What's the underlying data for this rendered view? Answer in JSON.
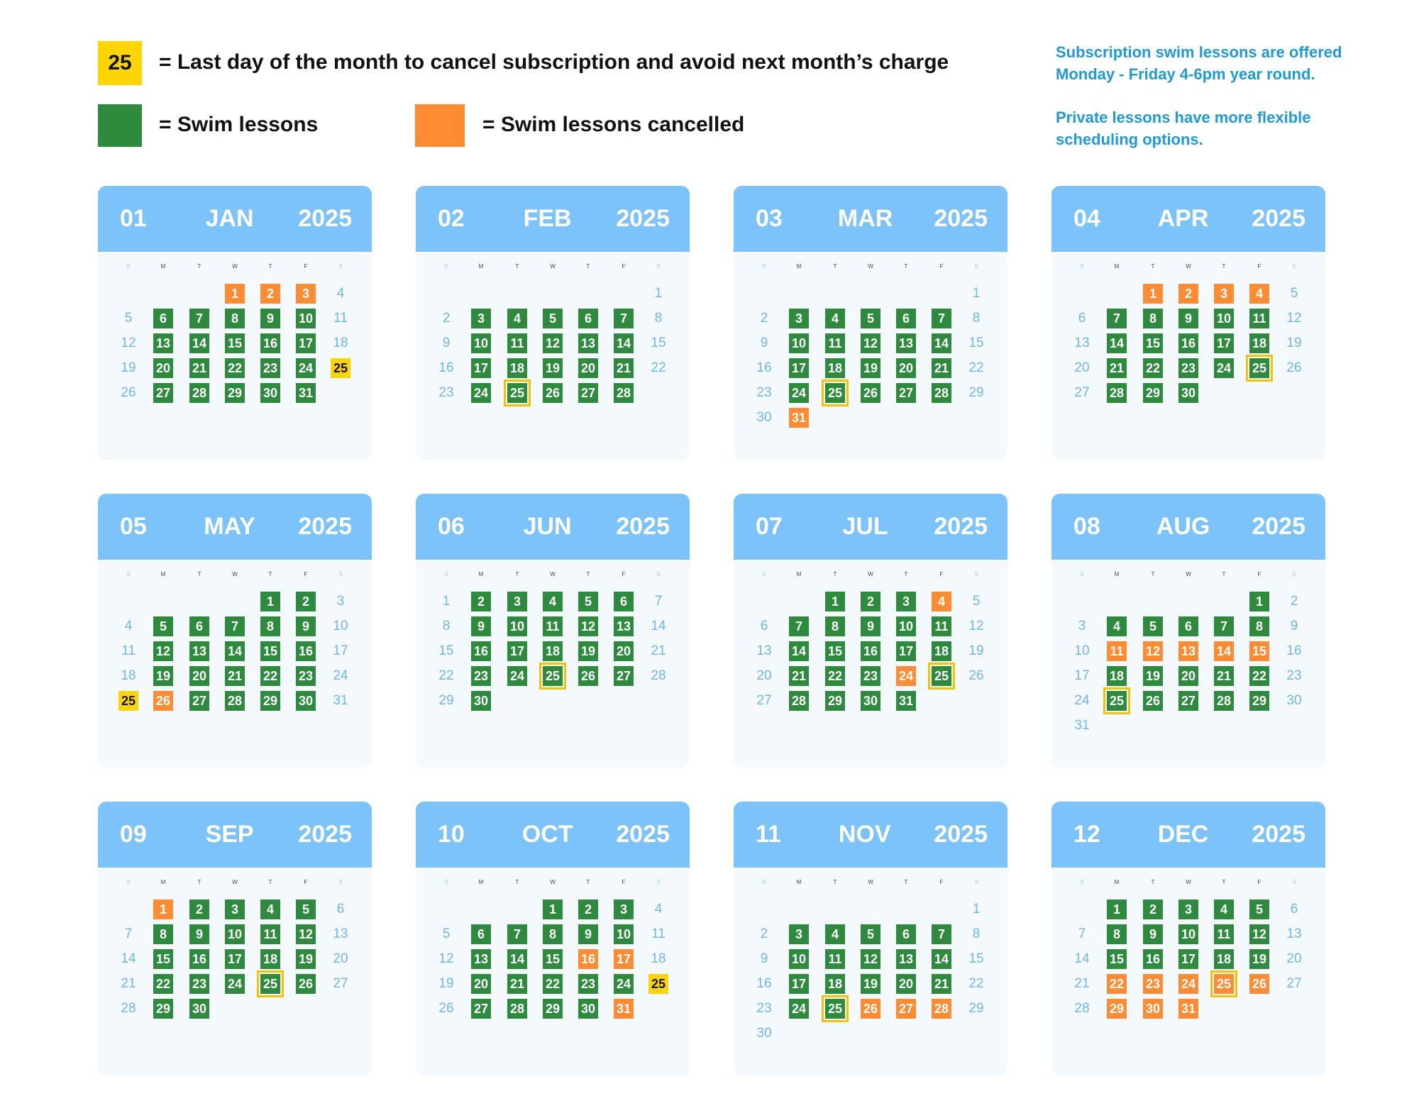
{
  "legend": {
    "deadline_swatch_label": "25",
    "deadline_text": "= Last day of the month to cancel subscription and avoid next month’s charge",
    "lessons_text": "= Swim lessons",
    "cancelled_text": "= Swim lessons cancelled"
  },
  "info": {
    "line1": "Subscription swim lessons are offered  Monday - Friday 4-6pm year round.",
    "line2": "Private lessons have more flexible scheduling options."
  },
  "colors": {
    "lesson": "#2e8b3e",
    "cancelled": "#ff8c33",
    "deadline": "#ffd500",
    "header": "#7cc2fb",
    "info_text": "#1e9ad6"
  },
  "weekday_labels": [
    "S",
    "M",
    "T",
    "W",
    "T",
    "F",
    "S"
  ],
  "months": [
    {
      "num": "01",
      "name": "JAN",
      "year": "2025",
      "start_dow": 3,
      "days": 31,
      "cancelled": [
        1,
        2,
        3
      ],
      "deadline_highlight": true
    },
    {
      "num": "02",
      "name": "FEB",
      "year": "2025",
      "start_dow": 6,
      "days": 28,
      "cancelled": [],
      "deadline_highlight": false
    },
    {
      "num": "03",
      "name": "MAR",
      "year": "2025",
      "start_dow": 6,
      "days": 31,
      "cancelled": [
        31
      ],
      "deadline_highlight": false
    },
    {
      "num": "04",
      "name": "APR",
      "year": "2025",
      "start_dow": 2,
      "days": 30,
      "cancelled": [
        1,
        2,
        3,
        4
      ],
      "deadline_highlight": false
    },
    {
      "num": "05",
      "name": "MAY",
      "year": "2025",
      "start_dow": 4,
      "days": 31,
      "cancelled": [
        26
      ],
      "deadline_highlight": true
    },
    {
      "num": "06",
      "name": "JUN",
      "year": "2025",
      "start_dow": 0,
      "days": 30,
      "cancelled": [],
      "deadline_highlight": false
    },
    {
      "num": "07",
      "name": "JUL",
      "year": "2025",
      "start_dow": 2,
      "days": 31,
      "cancelled": [
        4,
        24
      ],
      "deadline_highlight": false
    },
    {
      "num": "08",
      "name": "AUG",
      "year": "2025",
      "start_dow": 5,
      "days": 31,
      "cancelled": [
        11,
        12,
        13,
        14,
        15
      ],
      "deadline_highlight": false
    },
    {
      "num": "09",
      "name": "SEP",
      "year": "2025",
      "start_dow": 1,
      "days": 30,
      "cancelled": [
        1
      ],
      "deadline_highlight": false
    },
    {
      "num": "10",
      "name": "OCT",
      "year": "2025",
      "start_dow": 3,
      "days": 31,
      "cancelled": [
        16,
        17,
        31
      ],
      "deadline_highlight": true
    },
    {
      "num": "11",
      "name": "NOV",
      "year": "2025",
      "start_dow": 6,
      "days": 30,
      "cancelled": [
        26,
        27,
        28
      ],
      "deadline_highlight": false
    },
    {
      "num": "12",
      "name": "DEC",
      "year": "2025",
      "start_dow": 1,
      "days": 31,
      "cancelled": [
        22,
        23,
        24,
        25,
        26,
        29,
        30,
        31
      ],
      "deadline_highlight": false
    }
  ]
}
